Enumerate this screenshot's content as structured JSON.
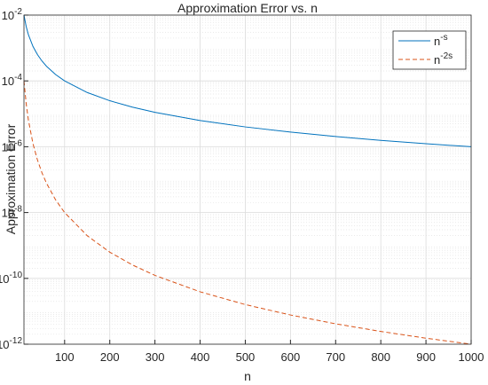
{
  "chart_data": {
    "type": "line",
    "title": "Approximation Error vs. n",
    "xlabel": "n",
    "ylabel": "Approximation Error",
    "x": [
      10,
      15,
      20,
      30,
      40,
      50,
      60,
      80,
      100,
      150,
      200,
      250,
      300,
      400,
      500,
      600,
      700,
      800,
      900,
      1000
    ],
    "series": [
      {
        "name": "n^-s",
        "color": "#0072bd",
        "dash": false,
        "values": [
          0.01,
          0.00444,
          0.0025,
          0.00111,
          0.000625,
          0.0004,
          0.000278,
          0.000156,
          0.0001,
          4.44e-05,
          2.5e-05,
          1.6e-05,
          1.11e-05,
          6.25e-06,
          4e-06,
          2.78e-06,
          2.04e-06,
          1.56e-06,
          1.23e-06,
          1e-06
        ]
      },
      {
        "name": "n^-2s",
        "color": "#d95319",
        "dash": true,
        "values": [
          0.0001,
          1.98e-05,
          6.25e-06,
          1.23e-06,
          3.91e-07,
          1.6e-07,
          7.72e-08,
          2.44e-08,
          1e-08,
          1.98e-09,
          6.25e-10,
          2.56e-10,
          1.23e-10,
          3.91e-11,
          1.6e-11,
          7.72e-12,
          4.16e-12,
          2.44e-12,
          1.52e-12,
          1e-12
        ]
      }
    ],
    "xlim": [
      10,
      1000
    ],
    "xticks": [
      100,
      200,
      300,
      400,
      500,
      600,
      700,
      800,
      900,
      1000
    ],
    "ylim": [
      1e-12,
      0.01
    ],
    "ylog": true,
    "yticks": [
      {
        "value": 1e-12,
        "label": "10^-12"
      },
      {
        "value": 1e-10,
        "label": "10^-10"
      },
      {
        "value": 1e-08,
        "label": "10^-8"
      },
      {
        "value": 1e-06,
        "label": "10^-6"
      },
      {
        "value": 0.0001,
        "label": "10^-4"
      },
      {
        "value": 0.01,
        "label": "10^-2"
      }
    ],
    "grid": true,
    "minor_grid": true,
    "legend": "northeast"
  }
}
